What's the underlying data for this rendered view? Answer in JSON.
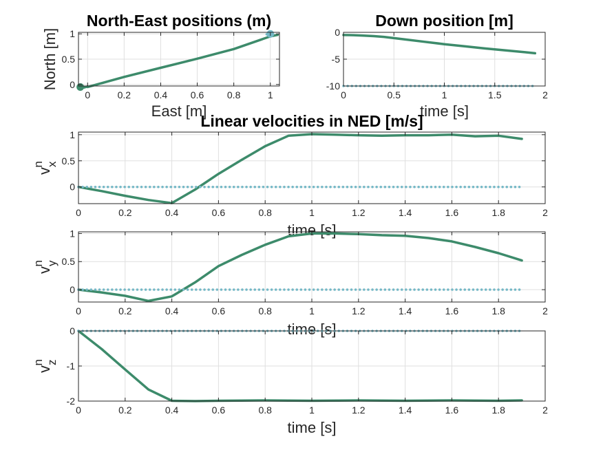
{
  "colors": {
    "measured": "#3d8b6b",
    "reference": "#74b8c6",
    "background": "#ffffff",
    "axis": "#262626",
    "grid": "#dfdfdf"
  },
  "chart_data": [
    {
      "id": "ne",
      "type": "line",
      "title": "North-East positions (m)",
      "xlabel": "East [m]",
      "ylabel": "North [m]",
      "xlim": [
        -0.05,
        1.05
      ],
      "ylim": [
        -0.03,
        1.03
      ],
      "xticks": [
        0,
        0.2,
        0.4,
        0.6,
        0.8,
        1
      ],
      "xtick_labels": [
        "0",
        "0.2",
        "0.4",
        "0.6",
        "0.8",
        "1"
      ],
      "yticks": [
        0,
        0.5,
        1
      ],
      "ytick_labels": [
        "0",
        "0.5",
        "1"
      ],
      "grid": true,
      "series": [
        {
          "style": "solid",
          "color": "measured",
          "x": [
            -0.04,
            -0.02,
            0.0,
            0.0,
            0.2,
            0.4,
            0.6,
            0.8,
            1.0,
            1.04
          ],
          "y": [
            -0.05,
            -0.06,
            -0.04,
            -0.05,
            0.15,
            0.33,
            0.51,
            0.7,
            0.95,
            0.98
          ]
        },
        {
          "style": "dotted",
          "color": "reference",
          "x": [
            0.98,
            1.02
          ],
          "y": [
            0.99,
            1.01
          ]
        }
      ],
      "markers": [
        {
          "x": 1.0,
          "y": 1.0,
          "color": "reference"
        },
        {
          "x": -0.04,
          "y": -0.05,
          "color": "measured"
        }
      ]
    },
    {
      "id": "down",
      "type": "line",
      "title": "Down position [m]",
      "xlabel": "time [s]",
      "ylabel": "",
      "xlim": [
        0,
        2
      ],
      "ylim": [
        -10,
        0
      ],
      "xticks": [
        0,
        0.5,
        1,
        1.5,
        2
      ],
      "xtick_labels": [
        "0",
        "0.5",
        "1",
        "1.5",
        "2"
      ],
      "yticks": [
        -10,
        -5,
        0
      ],
      "ytick_labels": [
        "-10",
        "-5",
        "0"
      ],
      "grid": true,
      "series": [
        {
          "style": "solid",
          "color": "measured",
          "x": [
            0,
            0.1,
            0.2,
            0.3,
            0.4,
            0.6,
            0.8,
            1.0,
            1.2,
            1.4,
            1.6,
            1.8,
            1.9
          ],
          "y": [
            -0.5,
            -0.52,
            -0.6,
            -0.7,
            -0.85,
            -1.3,
            -1.75,
            -2.2,
            -2.6,
            -3.0,
            -3.35,
            -3.7,
            -3.9
          ]
        },
        {
          "style": "dotted",
          "color": "reference",
          "x": [
            0,
            1.9
          ],
          "y": [
            -10,
            -10
          ]
        }
      ]
    },
    {
      "id": "vx",
      "type": "line",
      "title": "Linear velocities in NED [m/s]",
      "xlabel": "time [s]",
      "ylabel_main": "v",
      "ylabel_sup": "n",
      "ylabel_sub": "x",
      "xlim": [
        0,
        2
      ],
      "ylim": [
        -0.32,
        1.05
      ],
      "xticks": [
        0,
        0.2,
        0.4,
        0.6,
        0.8,
        1,
        1.2,
        1.4,
        1.6,
        1.8,
        2
      ],
      "xtick_labels": [
        "0",
        "0.2",
        "0.4",
        "0.6",
        "0.8",
        "1",
        "1.2",
        "1.4",
        "1.6",
        "1.8",
        "2"
      ],
      "yticks": [
        0,
        0.5,
        1
      ],
      "ytick_labels": [
        "0",
        "0.5",
        "1"
      ],
      "grid": true,
      "series": [
        {
          "style": "solid",
          "color": "measured",
          "x": [
            0,
            0.1,
            0.2,
            0.3,
            0.4,
            0.5,
            0.6,
            0.7,
            0.8,
            0.9,
            1.0,
            1.1,
            1.2,
            1.3,
            1.4,
            1.5,
            1.6,
            1.7,
            1.8,
            1.9
          ],
          "y": [
            0,
            -0.08,
            -0.17,
            -0.25,
            -0.31,
            -0.05,
            0.25,
            0.52,
            0.78,
            0.98,
            1.01,
            1.0,
            0.99,
            0.98,
            0.99,
            0.99,
            1.0,
            0.97,
            0.98,
            0.92
          ]
        },
        {
          "style": "dotted",
          "color": "reference",
          "x": [
            0,
            1.9
          ],
          "y": [
            0,
            0
          ]
        }
      ]
    },
    {
      "id": "vy",
      "type": "line",
      "title": "",
      "xlabel": "time [s]",
      "ylabel_main": "v",
      "ylabel_sup": "n",
      "ylabel_sub": "y",
      "xlim": [
        0,
        2
      ],
      "ylim": [
        -0.22,
        1.03
      ],
      "xticks": [
        0,
        0.2,
        0.4,
        0.6,
        0.8,
        1,
        1.2,
        1.4,
        1.6,
        1.8,
        2
      ],
      "xtick_labels": [
        "0",
        "0.2",
        "0.4",
        "0.6",
        "0.8",
        "1",
        "1.2",
        "1.4",
        "1.6",
        "1.8",
        "2"
      ],
      "yticks": [
        0,
        0.5,
        1
      ],
      "ytick_labels": [
        "0",
        "0.5",
        "1"
      ],
      "grid": true,
      "series": [
        {
          "style": "solid",
          "color": "measured",
          "x": [
            0,
            0.1,
            0.2,
            0.3,
            0.4,
            0.5,
            0.6,
            0.7,
            0.8,
            0.9,
            1.0,
            1.1,
            1.2,
            1.3,
            1.4,
            1.5,
            1.6,
            1.7,
            1.8,
            1.9
          ],
          "y": [
            0,
            -0.05,
            -0.11,
            -0.2,
            -0.12,
            0.13,
            0.42,
            0.62,
            0.8,
            0.95,
            1.0,
            1.0,
            0.99,
            0.97,
            0.96,
            0.92,
            0.86,
            0.76,
            0.65,
            0.52
          ]
        },
        {
          "style": "dotted",
          "color": "reference",
          "x": [
            0,
            1.9
          ],
          "y": [
            0,
            0
          ]
        }
      ]
    },
    {
      "id": "vz",
      "type": "line",
      "title": "",
      "xlabel": "time [s]",
      "ylabel_main": "v",
      "ylabel_sup": "n",
      "ylabel_sub": "z",
      "xlim": [
        0,
        2
      ],
      "ylim": [
        -2,
        0
      ],
      "xticks": [
        0,
        0.2,
        0.4,
        0.6,
        0.8,
        1,
        1.2,
        1.4,
        1.6,
        1.8,
        2
      ],
      "xtick_labels": [
        "0",
        "0.2",
        "0.4",
        "0.6",
        "0.8",
        "1",
        "1.2",
        "1.4",
        "1.6",
        "1.8",
        "2"
      ],
      "yticks": [
        -2,
        -1,
        0
      ],
      "ytick_labels": [
        "-2",
        "-1",
        "0"
      ],
      "grid": true,
      "series": [
        {
          "style": "solid",
          "color": "measured",
          "x": [
            0,
            0.1,
            0.2,
            0.3,
            0.4,
            0.5,
            0.6,
            0.8,
            1.0,
            1.2,
            1.4,
            1.6,
            1.8,
            1.9
          ],
          "y": [
            0,
            -0.52,
            -1.1,
            -1.67,
            -1.99,
            -2.0,
            -1.99,
            -1.98,
            -1.99,
            -1.98,
            -1.99,
            -1.98,
            -1.99,
            -1.98
          ]
        },
        {
          "style": "dotted",
          "color": "reference",
          "x": [
            0,
            1.9
          ],
          "y": [
            0,
            0
          ]
        }
      ]
    }
  ]
}
